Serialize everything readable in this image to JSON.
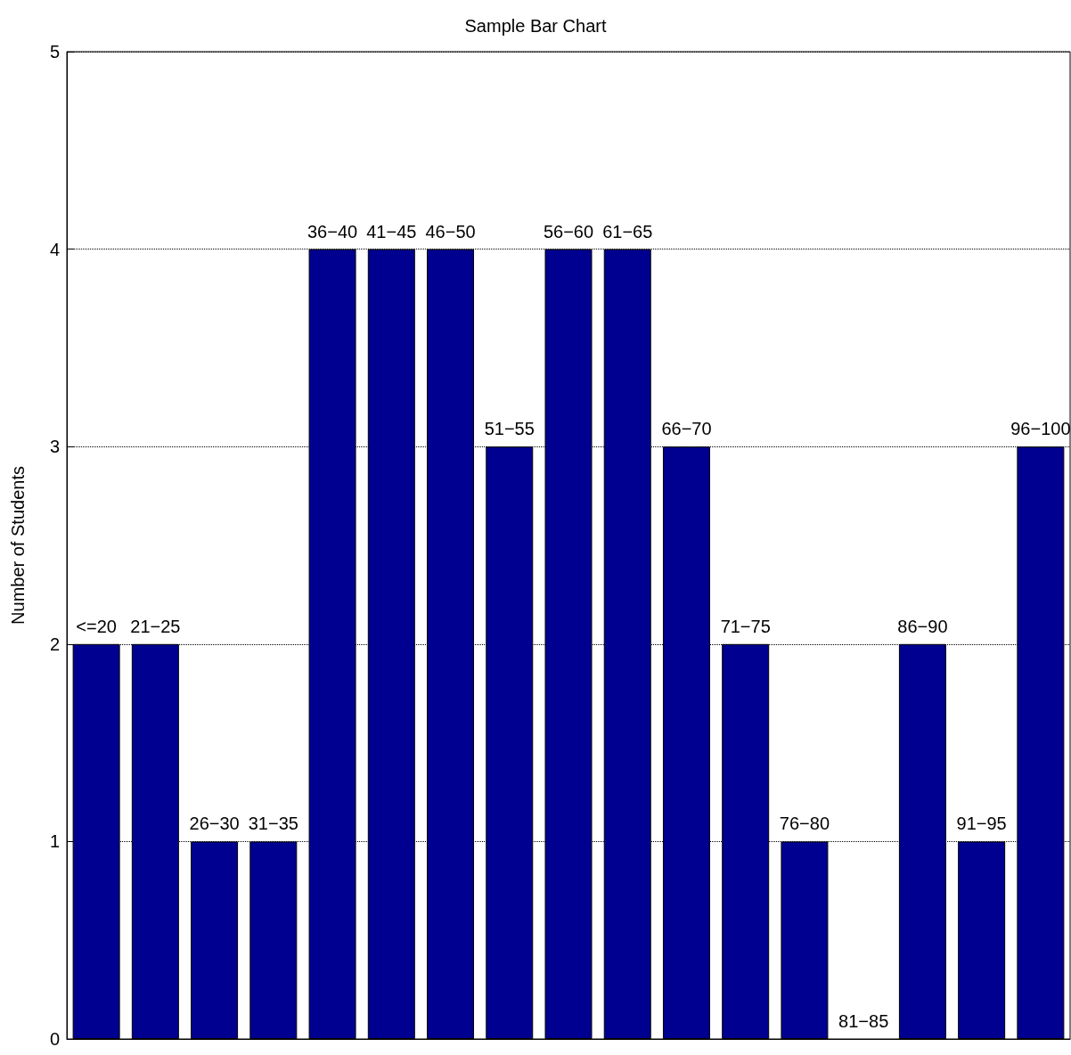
{
  "chart_data": {
    "type": "bar",
    "title": "Sample Bar Chart",
    "ylabel": "Number of Students",
    "categories": [
      "<=20",
      "21−25",
      "26−30",
      "31−35",
      "36−40",
      "41−45",
      "46−50",
      "51−55",
      "56−60",
      "61−65",
      "66−70",
      "71−75",
      "76−80",
      "81−85",
      "86−90",
      "91−95",
      "96−100"
    ],
    "values": [
      2,
      2,
      1,
      1,
      4,
      4,
      4,
      3,
      4,
      4,
      3,
      2,
      1,
      0,
      2,
      1,
      3
    ],
    "color": "#000090",
    "ylim": [
      0,
      5
    ],
    "yticks": [
      0,
      1,
      2,
      3,
      4,
      5
    ],
    "grid": "y",
    "tick_labels": "y"
  }
}
